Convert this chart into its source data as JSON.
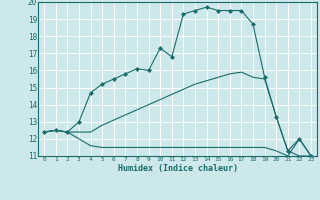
{
  "xlabel": "Humidex (Indice chaleur)",
  "ylabel": "",
  "background_color": "#cde8ea",
  "grid_color": "#ffffff",
  "line_color": "#1a6b6b",
  "xlim": [
    -0.5,
    23.5
  ],
  "ylim": [
    11,
    20
  ],
  "yticks": [
    11,
    12,
    13,
    14,
    15,
    16,
    17,
    18,
    19,
    20
  ],
  "xticks": [
    0,
    1,
    2,
    3,
    4,
    5,
    6,
    7,
    8,
    9,
    10,
    11,
    12,
    13,
    14,
    15,
    16,
    17,
    18,
    19,
    20,
    21,
    22,
    23
  ],
  "series": [
    {
      "x": [
        0,
        1,
        2,
        3,
        4,
        5,
        6,
        7,
        8,
        9,
        10,
        11,
        12,
        13,
        14,
        15,
        16,
        17,
        18,
        19,
        20,
        21,
        22,
        23
      ],
      "y": [
        12.4,
        12.5,
        12.4,
        12.0,
        11.6,
        11.5,
        11.5,
        11.5,
        11.5,
        11.5,
        11.5,
        11.5,
        11.5,
        11.5,
        11.5,
        11.5,
        11.5,
        11.5,
        11.5,
        11.5,
        11.3,
        11.0,
        12.0,
        11.0
      ],
      "marker": null
    },
    {
      "x": [
        0,
        1,
        2,
        3,
        4,
        5,
        6,
        7,
        8,
        9,
        10,
        11,
        12,
        13,
        14,
        15,
        16,
        17,
        18,
        19,
        20,
        21,
        22,
        23
      ],
      "y": [
        12.4,
        12.5,
        12.4,
        12.4,
        12.4,
        12.8,
        13.1,
        13.4,
        13.7,
        14.0,
        14.3,
        14.6,
        14.9,
        15.2,
        15.4,
        15.6,
        15.8,
        15.9,
        15.6,
        15.5,
        13.3,
        11.3,
        11.0,
        11.0
      ],
      "marker": null
    },
    {
      "x": [
        0,
        1,
        2,
        3,
        4,
        5,
        6,
        7,
        8,
        9,
        10,
        11,
        12,
        13,
        14,
        15,
        16,
        17,
        18,
        19,
        20,
        21,
        22,
        23
      ],
      "y": [
        12.4,
        12.5,
        12.4,
        13.0,
        14.7,
        15.2,
        15.5,
        15.8,
        16.1,
        16.0,
        17.3,
        16.8,
        19.3,
        19.5,
        19.7,
        19.5,
        19.5,
        19.5,
        18.7,
        15.6,
        13.3,
        11.3,
        12.0,
        11.0
      ],
      "marker": "D",
      "markersize": 2
    }
  ]
}
